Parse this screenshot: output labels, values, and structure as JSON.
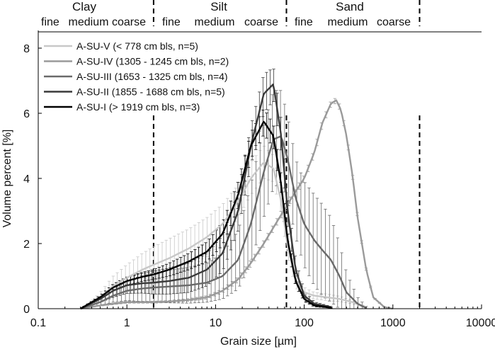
{
  "chart_data": {
    "type": "line",
    "xlabel": "Grain size [µm]",
    "ylabel": "Volume percent [%]",
    "xscale": "log",
    "xlim": [
      0.1,
      10000
    ],
    "ylim": [
      0,
      8.5
    ],
    "x_ticks": [
      "0.1",
      "1",
      "10",
      "100",
      "1000",
      "10000"
    ],
    "y_ticks": [
      "0",
      "2",
      "4",
      "6",
      "8"
    ],
    "grid": false,
    "legend_position": "top-left",
    "regions": [
      {
        "label": "Clay",
        "subs": [
          "fine",
          "medium",
          "coarse"
        ]
      },
      {
        "label": "Silt",
        "subs": [
          "fine",
          "medium",
          "coarse"
        ]
      },
      {
        "label": "Sand",
        "subs": [
          "fine",
          "medium",
          "coarse"
        ]
      }
    ],
    "boundaries": [
      2,
      63,
      2000
    ],
    "series": [
      {
        "name": "A-SU-V",
        "legend_detail": "(< 778 cm bls, n=5)",
        "color": "#c8c8c8",
        "x": [
          0.3,
          0.4,
          0.5,
          0.7,
          1,
          1.5,
          2,
          3,
          5,
          8,
          12,
          18,
          25,
          35,
          45,
          55,
          65,
          80,
          100,
          130,
          180,
          250,
          350,
          500
        ],
        "y": [
          0,
          0.15,
          0.35,
          0.7,
          0.95,
          1.2,
          1.35,
          1.55,
          1.85,
          2.2,
          2.6,
          3.3,
          4.0,
          4.5,
          4.3,
          3.3,
          1.9,
          0.9,
          0.5,
          0.4,
          0.35,
          0.3,
          0.2,
          0.05
        ],
        "error": [
          0,
          0.08,
          0.15,
          0.3,
          0.4,
          0.5,
          0.55,
          0.6,
          0.6,
          0.6,
          0.6,
          0.5,
          0.5,
          0.5,
          0.4,
          0.4,
          0.3,
          0.25,
          0.15,
          0.1,
          0.1,
          0.08,
          0.05,
          0.02
        ]
      },
      {
        "name": "A-SU-IV",
        "legend_detail": "(1305 - 1245 cm bls, n=2)",
        "color": "#9a9a9a",
        "x": [
          0.3,
          0.5,
          1,
          2,
          3,
          5,
          8,
          12,
          18,
          25,
          35,
          50,
          65,
          80,
          100,
          130,
          160,
          200,
          230,
          260,
          300,
          350,
          400,
          500,
          600,
          800,
          1000
        ],
        "y": [
          0,
          0.1,
          0.2,
          0.2,
          0.22,
          0.27,
          0.35,
          0.55,
          0.9,
          1.4,
          2.0,
          2.7,
          3.2,
          3.6,
          4.0,
          4.8,
          5.7,
          6.3,
          6.4,
          6.1,
          5.3,
          4.1,
          2.8,
          1.2,
          0.35,
          0.05,
          0
        ],
        "error": [
          0,
          0.02,
          0.03,
          0.03,
          0.03,
          0.04,
          0.05,
          0.06,
          0.08,
          0.1,
          0.1,
          0.1,
          0.1,
          0.1,
          0.1,
          0.1,
          0.1,
          0.08,
          0.08,
          0.08,
          0.08,
          0.06,
          0.05,
          0.03,
          0.02,
          0.01,
          0
        ]
      },
      {
        "name": "A-SU-III",
        "legend_detail": "(1653 - 1325 cm bls, n=4)",
        "color": "#6a6a6a",
        "x": [
          0.3,
          0.5,
          0.7,
          1,
          1.5,
          2,
          3,
          5,
          8,
          12,
          18,
          25,
          35,
          45,
          55,
          65,
          80,
          100,
          130,
          160,
          200,
          250,
          300,
          400,
          500
        ],
        "y": [
          0,
          0.2,
          0.4,
          0.55,
          0.62,
          0.65,
          0.68,
          0.72,
          0.8,
          1.0,
          1.5,
          2.6,
          4.2,
          5.2,
          5.3,
          4.6,
          3.4,
          2.6,
          2.1,
          1.8,
          1.5,
          1.0,
          0.5,
          0.15,
          0.02
        ],
        "error": [
          0,
          0.1,
          0.2,
          0.3,
          0.4,
          0.45,
          0.5,
          0.55,
          0.6,
          0.7,
          0.9,
          1.2,
          1.4,
          1.5,
          1.4,
          1.3,
          1.2,
          1.3,
          1.4,
          1.4,
          1.3,
          1.0,
          0.6,
          0.2,
          0.05
        ]
      },
      {
        "name": "A-SU-II",
        "legend_detail": "(1855 - 1688 cm bls, n=5)",
        "color": "#3a3a3a",
        "x": [
          0.3,
          0.5,
          0.7,
          1,
          1.5,
          2,
          3,
          5,
          8,
          12,
          18,
          25,
          35,
          45,
          55,
          65,
          80,
          100,
          130,
          200
        ],
        "y": [
          0,
          0.3,
          0.55,
          0.72,
          0.78,
          0.8,
          0.85,
          0.95,
          1.2,
          1.7,
          3.0,
          5.0,
          6.6,
          6.9,
          5.3,
          3.0,
          1.2,
          0.4,
          0.15,
          0.05
        ],
        "error": [
          0,
          0.1,
          0.2,
          0.25,
          0.3,
          0.35,
          0.4,
          0.45,
          0.5,
          0.55,
          0.6,
          0.6,
          0.6,
          0.5,
          0.5,
          0.4,
          0.3,
          0.15,
          0.06,
          0.02
        ]
      },
      {
        "name": "A-SU-I",
        "legend_detail": "(> 1919 cm bls, n=3)",
        "color": "#000000",
        "x": [
          0.3,
          0.5,
          0.7,
          1,
          1.5,
          2,
          3,
          5,
          8,
          12,
          18,
          25,
          35,
          45,
          55,
          65,
          80,
          100,
          130,
          200
        ],
        "y": [
          0,
          0.35,
          0.65,
          0.85,
          0.98,
          1.05,
          1.2,
          1.45,
          1.75,
          2.3,
          3.5,
          5.0,
          5.75,
          5.3,
          3.8,
          2.1,
          0.85,
          0.3,
          0.1,
          0.03
        ],
        "error": [
          0,
          0.05,
          0.1,
          0.12,
          0.14,
          0.15,
          0.2,
          0.25,
          0.3,
          0.35,
          0.4,
          0.4,
          0.4,
          0.35,
          0.3,
          0.25,
          0.15,
          0.08,
          0.04,
          0.01
        ]
      }
    ]
  }
}
